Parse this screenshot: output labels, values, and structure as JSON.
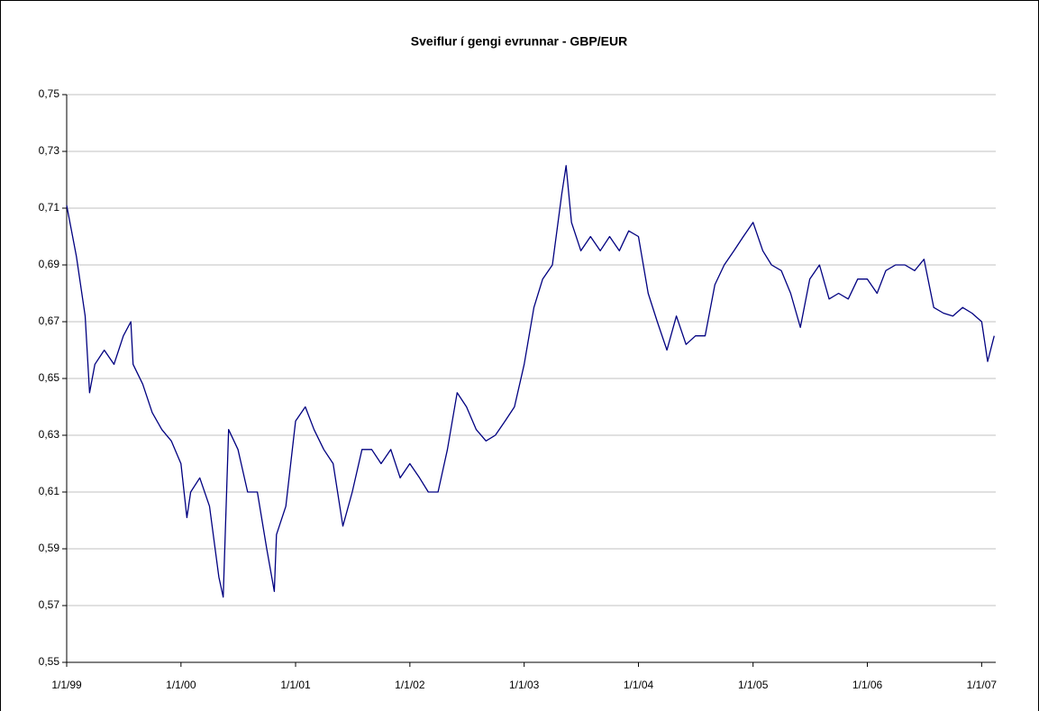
{
  "chart_data": {
    "type": "line",
    "title": "Sveiflur í gengi evrunnar - GBP/EUR",
    "color": "#000080",
    "grid": true,
    "xlim": [
      "1999-01-01",
      "2007-02-15"
    ],
    "xticks": [
      {
        "value": "1999-01-01",
        "label": "1/1/99"
      },
      {
        "value": "2000-01-01",
        "label": "1/1/00"
      },
      {
        "value": "2001-01-01",
        "label": "1/1/01"
      },
      {
        "value": "2002-01-01",
        "label": "1/1/02"
      },
      {
        "value": "2003-01-01",
        "label": "1/1/03"
      },
      {
        "value": "2004-01-01",
        "label": "1/1/04"
      },
      {
        "value": "2005-01-01",
        "label": "1/1/05"
      },
      {
        "value": "2006-01-01",
        "label": "1/1/06"
      },
      {
        "value": "2007-01-01",
        "label": "1/1/07"
      }
    ],
    "ylim": [
      0.55,
      0.75
    ],
    "yticks": [
      {
        "value": 0.55,
        "label": "0,55"
      },
      {
        "value": 0.57,
        "label": "0,57"
      },
      {
        "value": 0.59,
        "label": "0,59"
      },
      {
        "value": 0.61,
        "label": "0,61"
      },
      {
        "value": 0.63,
        "label": "0,63"
      },
      {
        "value": 0.65,
        "label": "0,65"
      },
      {
        "value": 0.67,
        "label": "0,67"
      },
      {
        "value": 0.69,
        "label": "0,69"
      },
      {
        "value": 0.71,
        "label": "0,71"
      },
      {
        "value": 0.73,
        "label": "0,73"
      },
      {
        "value": 0.75,
        "label": "0,75"
      }
    ],
    "x": [
      "1999-01-01",
      "1999-02-01",
      "1999-03-01",
      "1999-03-15",
      "1999-04-01",
      "1999-05-01",
      "1999-06-01",
      "1999-07-01",
      "1999-07-25",
      "1999-08-01",
      "1999-09-01",
      "1999-10-01",
      "1999-11-01",
      "1999-12-01",
      "2000-01-01",
      "2000-01-20",
      "2000-02-01",
      "2000-03-01",
      "2000-04-01",
      "2000-05-01",
      "2000-05-15",
      "2000-06-01",
      "2000-07-01",
      "2000-08-01",
      "2000-09-01",
      "2000-10-01",
      "2000-10-25",
      "2000-11-01",
      "2000-12-01",
      "2001-01-01",
      "2001-02-01",
      "2001-03-01",
      "2001-04-01",
      "2001-05-01",
      "2001-06-01",
      "2001-07-01",
      "2001-08-01",
      "2001-09-01",
      "2001-10-01",
      "2001-11-01",
      "2001-12-01",
      "2002-01-01",
      "2002-02-01",
      "2002-03-01",
      "2002-04-01",
      "2002-05-01",
      "2002-06-01",
      "2002-07-01",
      "2002-08-01",
      "2002-09-01",
      "2002-10-01",
      "2002-11-01",
      "2002-12-01",
      "2003-01-01",
      "2003-02-01",
      "2003-03-01",
      "2003-04-01",
      "2003-05-01",
      "2003-05-15",
      "2003-06-01",
      "2003-07-01",
      "2003-08-01",
      "2003-09-01",
      "2003-10-01",
      "2003-11-01",
      "2003-12-01",
      "2004-01-01",
      "2004-02-01",
      "2004-03-01",
      "2004-04-01",
      "2004-05-01",
      "2004-06-01",
      "2004-07-01",
      "2004-08-01",
      "2004-09-01",
      "2004-10-01",
      "2004-11-01",
      "2004-12-01",
      "2005-01-01",
      "2005-02-01",
      "2005-03-01",
      "2005-04-01",
      "2005-05-01",
      "2005-06-01",
      "2005-07-01",
      "2005-08-01",
      "2005-09-01",
      "2005-10-01",
      "2005-11-01",
      "2005-12-01",
      "2006-01-01",
      "2006-02-01",
      "2006-03-01",
      "2006-04-01",
      "2006-05-01",
      "2006-06-01",
      "2006-07-01",
      "2006-08-01",
      "2006-09-01",
      "2006-10-01",
      "2006-11-01",
      "2006-12-01",
      "2007-01-01",
      "2007-01-20",
      "2007-02-10"
    ],
    "values": [
      0.711,
      0.693,
      0.672,
      0.645,
      0.655,
      0.66,
      0.655,
      0.665,
      0.67,
      0.655,
      0.648,
      0.638,
      0.632,
      0.628,
      0.62,
      0.601,
      0.61,
      0.615,
      0.605,
      0.58,
      0.573,
      0.632,
      0.625,
      0.61,
      0.61,
      0.59,
      0.575,
      0.595,
      0.605,
      0.635,
      0.64,
      0.632,
      0.625,
      0.62,
      0.598,
      0.61,
      0.625,
      0.625,
      0.62,
      0.625,
      0.615,
      0.62,
      0.615,
      0.61,
      0.61,
      0.625,
      0.645,
      0.64,
      0.632,
      0.628,
      0.63,
      0.635,
      0.64,
      0.655,
      0.675,
      0.685,
      0.69,
      0.715,
      0.725,
      0.705,
      0.695,
      0.7,
      0.695,
      0.7,
      0.695,
      0.702,
      0.7,
      0.68,
      0.67,
      0.66,
      0.672,
      0.662,
      0.665,
      0.665,
      0.683,
      0.69,
      0.695,
      0.7,
      0.705,
      0.695,
      0.69,
      0.688,
      0.68,
      0.668,
      0.685,
      0.69,
      0.678,
      0.68,
      0.678,
      0.685,
      0.685,
      0.68,
      0.688,
      0.69,
      0.69,
      0.688,
      0.692,
      0.675,
      0.673,
      0.672,
      0.675,
      0.673,
      0.67,
      0.656,
      0.665
    ]
  }
}
